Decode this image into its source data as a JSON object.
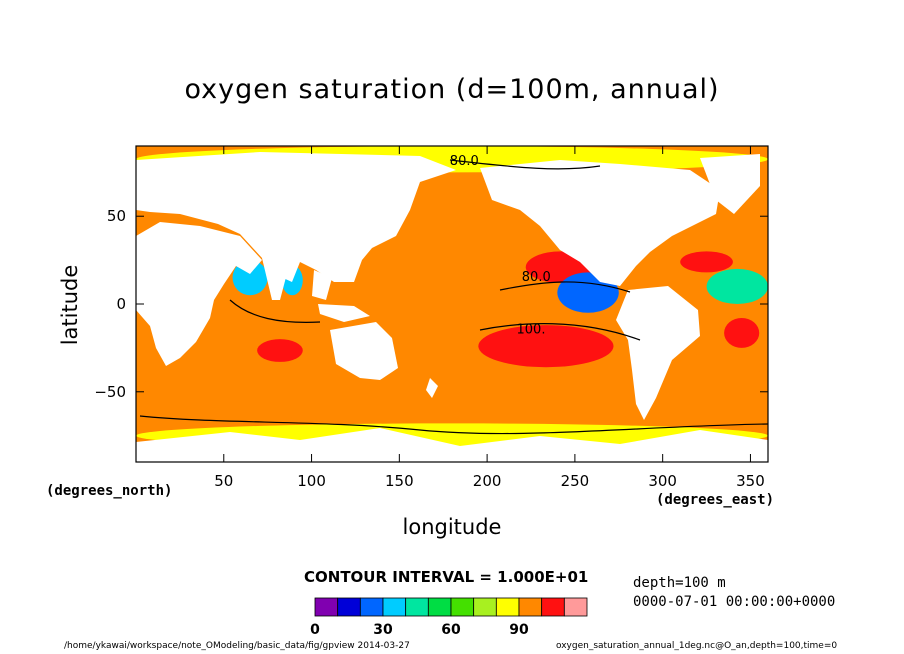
{
  "chart_data": {
    "type": "heatmap",
    "title": "oxygen saturation (d=100m, annual)",
    "xlabel": "longitude",
    "ylabel": "latitude",
    "x_units": "(degrees_east)",
    "y_units": "(degrees_north)",
    "xlim": [
      0,
      360
    ],
    "ylim": [
      -90,
      90
    ],
    "x_ticks": [
      50,
      100,
      150,
      200,
      250,
      300,
      350
    ],
    "y_ticks": [
      50,
      0,
      -50
    ],
    "x_tick_labels": [
      "50",
      "100",
      "150",
      "200",
      "250",
      "300",
      "350"
    ],
    "y_tick_labels": [
      "50",
      "0",
      "−50"
    ],
    "contour_interval_text": "CONTOUR INTERVAL = 1.000E+01",
    "contour_labels": [
      {
        "text": "80.0",
        "lon": 187,
        "lat": 82
      },
      {
        "text": "80.0",
        "lon": 228,
        "lat": 16
      },
      {
        "text": "100.",
        "lon": 225,
        "lat": -14
      }
    ],
    "colorbar": {
      "levels": [
        0,
        10,
        20,
        30,
        40,
        50,
        60,
        70,
        80,
        90,
        100,
        110
      ],
      "labels": [
        0,
        30,
        60,
        90
      ],
      "colors": [
        "#8000b0",
        "#0000d8",
        "#0066ff",
        "#00ccff",
        "#00e6a0",
        "#00dd44",
        "#44e000",
        "#a8f020",
        "#ffff00",
        "#ff8800",
        "#ff1111",
        "#ff9a9a"
      ]
    },
    "regions": [
      {
        "name": "ocean-south",
        "value": 95,
        "lon": [
          0,
          360
        ],
        "lat": [
          -68,
          -20
        ]
      },
      {
        "name": "southern-rim",
        "value": 80,
        "lon": [
          0,
          360
        ],
        "lat": [
          -82,
          -68
        ]
      },
      {
        "name": "pacific-subtropical-south",
        "value": 105,
        "lon": [
          195,
          272
        ],
        "lat": [
          -36,
          -12
        ]
      },
      {
        "name": "atlantic-subtropical-south",
        "value": 105,
        "lon": [
          335,
          355
        ],
        "lat": [
          -25,
          -8
        ]
      },
      {
        "name": "indian-subtropical-south",
        "value": 105,
        "lon": [
          69,
          95
        ],
        "lat": [
          -33,
          -20
        ]
      },
      {
        "name": "pacific-subtropical-north",
        "value": 105,
        "lon": [
          222,
          262
        ],
        "lat": [
          12,
          30
        ]
      },
      {
        "name": "atlantic-subtropical-north",
        "value": 105,
        "lon": [
          310,
          340
        ],
        "lat": [
          18,
          30
        ]
      },
      {
        "name": "east-pacific-omz",
        "value": 25,
        "lon": [
          240,
          275
        ],
        "lat": [
          -5,
          18
        ]
      },
      {
        "name": "arabian-sea-omz",
        "value": 35,
        "lon": [
          55,
          75
        ],
        "lat": [
          5,
          25
        ]
      },
      {
        "name": "bay-of-bengal-omz",
        "value": 35,
        "lon": [
          83,
          95
        ],
        "lat": [
          5,
          22
        ]
      },
      {
        "name": "atlantic-omz",
        "value": 45,
        "lon": [
          325,
          360
        ],
        "lat": [
          0,
          20
        ]
      },
      {
        "name": "arctic",
        "value": 85,
        "lon": [
          0,
          360
        ],
        "lat": [
          75,
          90
        ]
      }
    ]
  },
  "footer": {
    "depth": "depth=100 m",
    "time": "0000-07-01 00:00:00+0000",
    "path": "/home/ykawai/workspace/note_OModeling/basic_data/fig/gpview  2014-03-27",
    "ncfile": "oxygen_saturation_annual_1deg.nc@O_an,depth=100,time=0"
  }
}
